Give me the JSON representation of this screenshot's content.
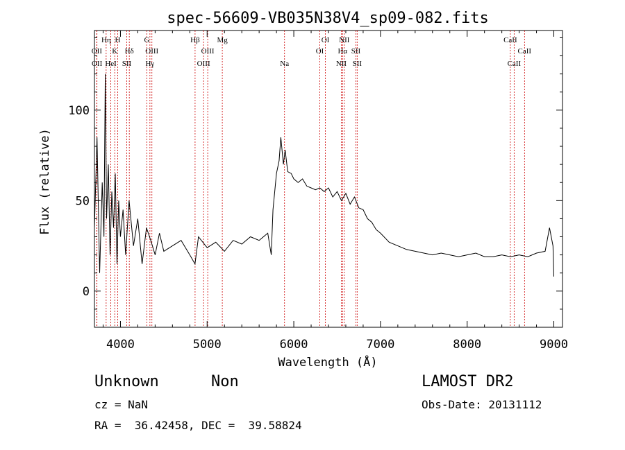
{
  "chart_data": {
    "type": "line",
    "title": "spec-56609-VB035N38V4_sp09-082.fits",
    "xlabel": "Wavelength (Å)",
    "ylabel": "Flux (relative)",
    "xlim": [
      3700,
      9100
    ],
    "ylim": [
      -20,
      144
    ],
    "x_ticks": [
      4000,
      5000,
      6000,
      7000,
      8000,
      9000
    ],
    "x_tick_labels": [
      "4000",
      "5000",
      "6000",
      "7000",
      "8000",
      "9000"
    ],
    "y_ticks": [
      0,
      50,
      100
    ],
    "y_tick_labels": [
      "0",
      "50",
      "100"
    ],
    "grid": false,
    "line_color": "#000000",
    "marker_color": "#cc0000",
    "spectrum": {
      "x": [
        3700,
        3730,
        3760,
        3790,
        3810,
        3825,
        3840,
        3860,
        3880,
        3900,
        3920,
        3940,
        3960,
        3980,
        4000,
        4030,
        4060,
        4100,
        4150,
        4200,
        4250,
        4300,
        4350,
        4400,
        4450,
        4500,
        4600,
        4700,
        4800,
        4860,
        4900,
        5000,
        5100,
        5200,
        5300,
        5400,
        5500,
        5600,
        5700,
        5740,
        5760,
        5800,
        5830,
        5850,
        5880,
        5900,
        5930,
        5970,
        6000,
        6050,
        6100,
        6150,
        6200,
        6250,
        6300,
        6350,
        6400,
        6450,
        6500,
        6550,
        6600,
        6650,
        6700,
        6750,
        6800,
        6850,
        6900,
        6950,
        7000,
        7100,
        7200,
        7300,
        7400,
        7500,
        7600,
        7700,
        7800,
        7900,
        8000,
        8100,
        8200,
        8300,
        8400,
        8500,
        8600,
        8700,
        8800,
        8900,
        8950,
        8990,
        9000
      ],
      "y": [
        35,
        85,
        10,
        60,
        30,
        120,
        40,
        70,
        20,
        55,
        35,
        65,
        15,
        50,
        30,
        45,
        20,
        50,
        25,
        40,
        15,
        35,
        28,
        20,
        32,
        22,
        25,
        28,
        20,
        15,
        30,
        24,
        27,
        22,
        28,
        26,
        30,
        28,
        32,
        20,
        45,
        65,
        72,
        85,
        70,
        78,
        66,
        65,
        62,
        60,
        62,
        58,
        57,
        56,
        57,
        55,
        57,
        52,
        55,
        50,
        54,
        48,
        52,
        46,
        45,
        40,
        38,
        34,
        32,
        27,
        25,
        23,
        22,
        21,
        20,
        21,
        20,
        19,
        20,
        21,
        19,
        19,
        20,
        19,
        20,
        19,
        21,
        22,
        35,
        25,
        8
      ]
    },
    "line_markers": [
      {
        "label": "OII",
        "wavelength": 3727,
        "row": 2
      },
      {
        "label": "OII",
        "wavelength": 3729,
        "row": 3
      },
      {
        "label": "Hη",
        "wavelength": 3835,
        "row": 1
      },
      {
        "label": "H",
        "wavelength": 3968,
        "row": 1
      },
      {
        "label": "K",
        "wavelength": 3934,
        "row": 2
      },
      {
        "label": "HeI",
        "wavelength": 3889,
        "row": 3
      },
      {
        "label": "SII",
        "wavelength": 4072,
        "row": 3
      },
      {
        "label": "Hδ",
        "wavelength": 4102,
        "row": 2
      },
      {
        "label": "G",
        "wavelength": 4305,
        "row": 1
      },
      {
        "label": "OIII",
        "wavelength": 4363,
        "row": 2
      },
      {
        "label": "Hγ",
        "wavelength": 4340,
        "row": 3
      },
      {
        "label": "Hβ",
        "wavelength": 4861,
        "row": 1
      },
      {
        "label": "OIII",
        "wavelength": 5007,
        "row": 2
      },
      {
        "label": "OIII",
        "wavelength": 4959,
        "row": 3
      },
      {
        "label": "Mg",
        "wavelength": 5175,
        "row": 1
      },
      {
        "label": "Na",
        "wavelength": 5893,
        "row": 3
      },
      {
        "label": "OI",
        "wavelength": 6364,
        "row": 1
      },
      {
        "label": "OI",
        "wavelength": 6300,
        "row": 2
      },
      {
        "label": "NII",
        "wavelength": 6583,
        "row": 1
      },
      {
        "label": "Hα",
        "wavelength": 6563,
        "row": 2
      },
      {
        "label": "SII",
        "wavelength": 6716,
        "row": 2
      },
      {
        "label": "NII",
        "wavelength": 6548,
        "row": 3
      },
      {
        "label": "SII",
        "wavelength": 6731,
        "row": 3
      },
      {
        "label": "CaII",
        "wavelength": 8498,
        "row": 1
      },
      {
        "label": "CaII",
        "wavelength": 8662,
        "row": 2
      },
      {
        "label": "CaII",
        "wavelength": 8542,
        "row": 3
      }
    ]
  },
  "info": {
    "class_text": "Unknown",
    "subclass_text": "Non",
    "survey_text": "LAMOST DR2",
    "cz_text": "cz = NaN",
    "obs_date_text": "Obs-Date: 20131112",
    "radec_text": "RA =  36.42458, DEC =  39.58824"
  }
}
